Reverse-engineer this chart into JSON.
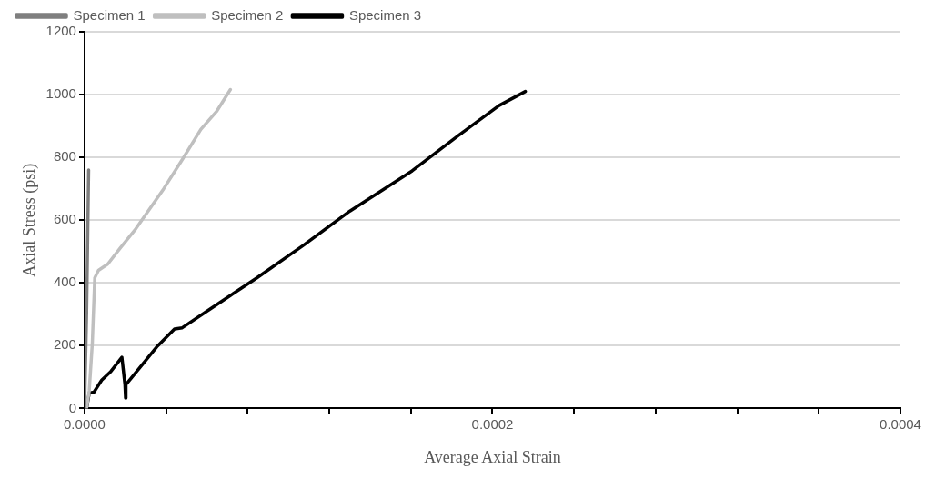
{
  "chart_data": {
    "type": "line",
    "xlabel": "Average Axial Strain",
    "ylabel": "Axial Stress (psi)",
    "xlim": [
      0,
      0.0004
    ],
    "ylim": [
      0,
      1200
    ],
    "xticks": [
      {
        "value": 0,
        "label": "0.0000"
      },
      {
        "value": 4e-05,
        "label": null
      },
      {
        "value": 8e-05,
        "label": null
      },
      {
        "value": 0.00012,
        "label": null
      },
      {
        "value": 0.00016,
        "label": null
      },
      {
        "value": 0.0002,
        "label": "0.0002"
      },
      {
        "value": 0.00024,
        "label": null
      },
      {
        "value": 0.00028,
        "label": null
      },
      {
        "value": 0.00032,
        "label": null
      },
      {
        "value": 0.00036,
        "label": null
      },
      {
        "value": 0.0004,
        "label": "0.0004"
      }
    ],
    "yticks": [
      0,
      200,
      400,
      600,
      800,
      1000,
      1200
    ],
    "grid": "y",
    "legend": "top left",
    "marker": "none",
    "line_style": "solid",
    "series": [
      {
        "name": "Specimen 1",
        "color": "#7f7f7f",
        "x": [
          0,
          1e-06,
          2e-06
        ],
        "values": [
          0,
          300,
          760
        ]
      },
      {
        "name": "Specimen 2",
        "color": "#bfbfbf",
        "x": [
          1e-06,
          2.3e-06,
          3.8e-06,
          5e-06,
          6.8e-06,
          1.14e-05,
          1.75e-05,
          2.51e-05,
          3.88e-05,
          4.8e-05,
          5.7e-05,
          6.47e-05,
          7.15e-05
        ],
        "values": [
          0,
          57,
          208,
          416,
          440,
          460,
          511,
          572,
          700,
          794,
          889,
          946,
          1016
        ]
      },
      {
        "name": "Specimen 3",
        "color": "#000000",
        "x": [
          1e-06,
          2.3e-06,
          4.6e-06,
          8.4e-06,
          1.29e-05,
          1.83e-05,
          1.98e-05,
          2.01e-05,
          2.03e-05,
          3.58e-05,
          4.41e-05,
          4.79e-05,
          6.16e-05,
          8.45e-05,
          0.0001073,
          0.0001301,
          0.0001606,
          0.0001834,
          0.0002032,
          0.0002161
        ],
        "values": [
          0,
          49,
          52,
          90,
          118,
          163,
          76,
          33,
          76,
          199,
          253,
          257,
          317,
          416,
          520,
          629,
          757,
          870,
          965,
          1010
        ]
      }
    ]
  }
}
